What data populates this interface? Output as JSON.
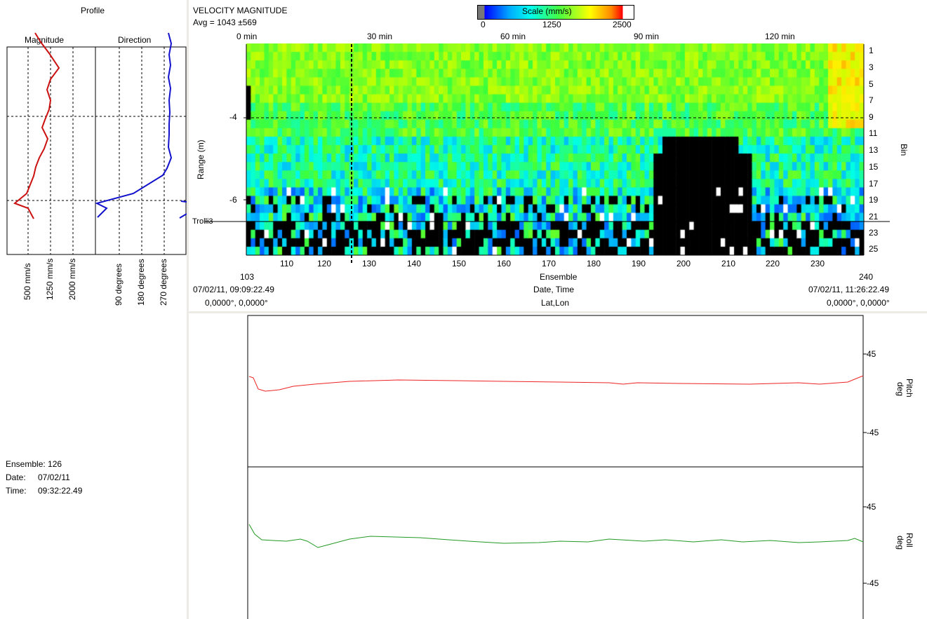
{
  "profile": {
    "title": "Profile",
    "magnitude_label": "Magnitude",
    "direction_label": "Direction",
    "magnitude_ticks": [
      "500 mm/s",
      "1250 mm/s",
      "2000 mm/s"
    ],
    "direction_ticks": [
      "90 degrees",
      "180 degrees",
      "270 degrees"
    ],
    "colors": {
      "magnitude": "#cc1111",
      "direction": "#1111cc"
    }
  },
  "cursor_info": {
    "ensemble_label": "Ensemble:",
    "ensemble": "126",
    "date_label": "Date:",
    "date": "07/02/11",
    "time_label": "Time:",
    "time": "09:32:22.49"
  },
  "contour": {
    "title": "VELOCITY MAGNITUDE",
    "avg": "Avg = 1043 ±569",
    "scale_label": "Scale (mm/s)",
    "scale_ticks": [
      "0",
      "1250",
      "2500"
    ],
    "time_ticks": [
      "0 min",
      "30 min",
      "60 min",
      "90 min",
      "120 min"
    ],
    "ensemble_ticks": [
      "110",
      "120",
      "130",
      "140",
      "150",
      "160",
      "170",
      "180",
      "190",
      "200",
      "210",
      "220",
      "230"
    ],
    "ensemble_start": "103",
    "ensemble_end": "240",
    "ensemble_label": "Ensemble",
    "date_time_label": "Date, Time",
    "start_datetime": "07/02/11, 09:09:22.49",
    "end_datetime": "07/02/11, 11:26:22.49",
    "latlon_label": "Lat,Lon",
    "start_latlon": "0,0000°, 0,0000°",
    "end_latlon": "0,0000°, 0,0000°",
    "range_label": "Range (m)",
    "range_ticks": [
      "-4",
      "-6"
    ],
    "bin_ticks": [
      "1",
      "3",
      "5",
      "7",
      "9",
      "11",
      "13",
      "15",
      "17",
      "19",
      "21",
      "23",
      "25"
    ],
    "bin_label": "Bin",
    "marker_label": "Trolli3"
  },
  "pitch": {
    "label": "Pitch",
    "unit": "deg",
    "ticks": [
      "45",
      "-45"
    ],
    "color": "#ee2222"
  },
  "roll": {
    "label": "Roll",
    "unit": "deg",
    "ticks": [
      "45",
      "-45"
    ],
    "color": "#229922"
  }
}
